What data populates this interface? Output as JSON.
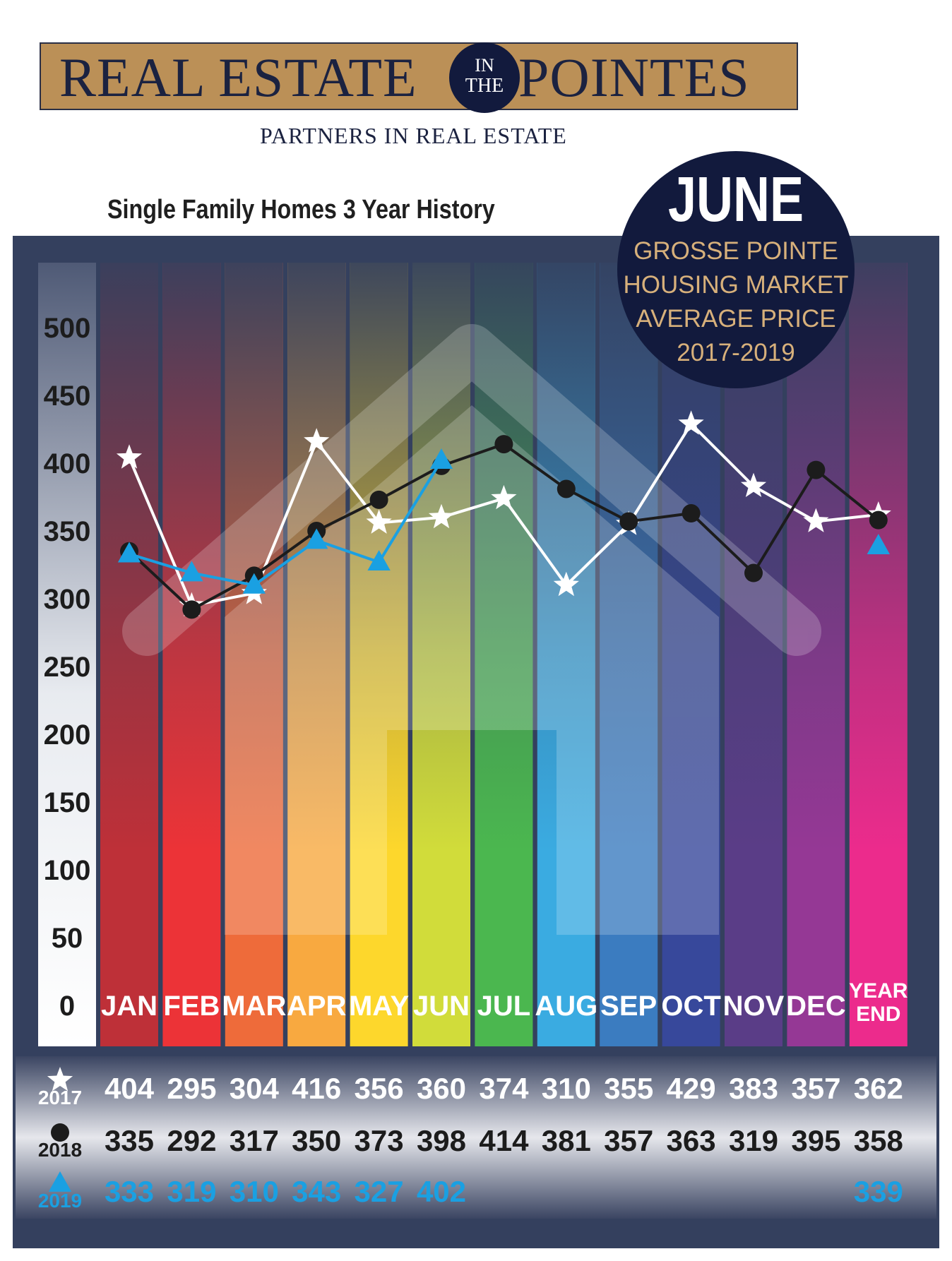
{
  "header": {
    "logo_left": "REAL ESTATE",
    "logo_mid_top": "IN",
    "logo_mid_bottom": "THE",
    "logo_right": "POINTES",
    "tagline": "PARTNERS IN REAL ESTATE"
  },
  "badge": {
    "title": "JUNE",
    "lines": [
      "GROSSE POINTE",
      "HOUSING MARKET",
      "AVERAGE  PRICE",
      "2017-2019"
    ]
  },
  "colors": {
    "frame": "#34405e",
    "accent_2019": "#1aa0e2",
    "badge_bg": "#121a3d",
    "badge_text": "#d7b07b",
    "month_columns": [
      "#be3038",
      "#ec3337",
      "#ee6b3a",
      "#f8a940",
      "#fdd72c",
      "#d1dc3a",
      "#4bb74f",
      "#3aabe1",
      "#3b7cc0",
      "#37489b",
      "#5a3d87",
      "#953895",
      "#ec2b8c"
    ]
  },
  "chart_data": {
    "type": "line",
    "title": "Single Family Homes 3 Year History",
    "categories": [
      "JAN",
      "FEB",
      "MAR",
      "APR",
      "MAY",
      "JUN",
      "JUL",
      "AUG",
      "SEP",
      "OCT",
      "NOV",
      "DEC",
      "YEAR END"
    ],
    "category_labels": [
      [
        "JAN"
      ],
      [
        "FEB"
      ],
      [
        "MAR"
      ],
      [
        "APR"
      ],
      [
        "MAY"
      ],
      [
        "JUN"
      ],
      [
        "JUL"
      ],
      [
        "AUG"
      ],
      [
        "SEP"
      ],
      [
        "OCT"
      ],
      [
        "NOV"
      ],
      [
        "DEC"
      ],
      [
        "YEAR",
        "END"
      ]
    ],
    "ylim": [
      0,
      500
    ],
    "yticks": [
      0,
      50,
      100,
      150,
      200,
      250,
      300,
      350,
      400,
      450,
      500
    ],
    "grid": false,
    "series": [
      {
        "name": "2017",
        "marker": "star",
        "color": "#ffffff",
        "values": [
          404,
          295,
          304,
          416,
          356,
          360,
          374,
          310,
          355,
          429,
          383,
          357,
          362
        ]
      },
      {
        "name": "2018",
        "marker": "circle",
        "color": "#1c1c1c",
        "values": [
          335,
          292,
          317,
          350,
          373,
          398,
          414,
          381,
          357,
          363,
          319,
          395,
          358
        ]
      },
      {
        "name": "2019",
        "marker": "triangle",
        "color": "#1aa0e2",
        "values": [
          333,
          319,
          310,
          343,
          327,
          402,
          null,
          null,
          null,
          null,
          null,
          null,
          339
        ]
      }
    ]
  }
}
